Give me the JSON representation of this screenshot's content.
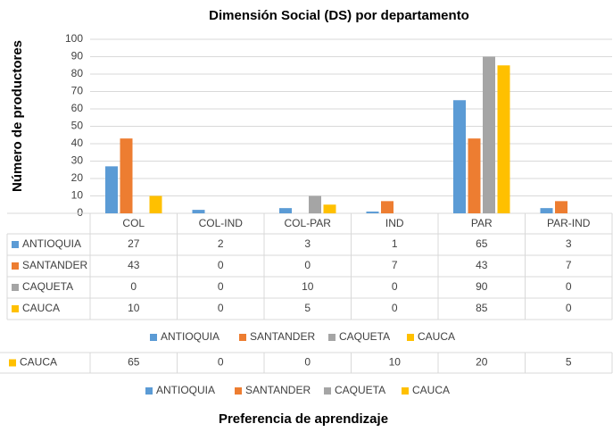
{
  "chart_data": {
    "type": "bar",
    "title": "Dimensión Social (DS) por departamento",
    "y_label": "Número de productores",
    "x_label": "Preferencia de aprendizaje",
    "categories": [
      "COL",
      "COL-IND",
      "COL-PAR",
      "IND",
      "PAR",
      "PAR-IND"
    ],
    "series": [
      {
        "name": "ANTIOQUIA",
        "color": "#5b9bd5",
        "values": [
          27,
          2,
          3,
          1,
          65,
          3
        ]
      },
      {
        "name": "SANTANDER",
        "color": "#ed7d31",
        "values": [
          43,
          0,
          0,
          7,
          43,
          7
        ]
      },
      {
        "name": "CAQUETA",
        "color": "#a5a5a5",
        "values": [
          0,
          0,
          10,
          0,
          90,
          0
        ]
      },
      {
        "name": "CAUCA",
        "color": "#ffc000",
        "values": [
          10,
          0,
          5,
          0,
          85,
          0
        ]
      }
    ],
    "ylim": [
      0,
      100
    ],
    "yticks": [
      0,
      10,
      20,
      30,
      40,
      50,
      60,
      70,
      80,
      90,
      100
    ],
    "grid": true,
    "extra_row": {
      "name": "CAUCA",
      "color": "#ffc000",
      "values": [
        65,
        0,
        0,
        10,
        20,
        5
      ]
    }
  }
}
